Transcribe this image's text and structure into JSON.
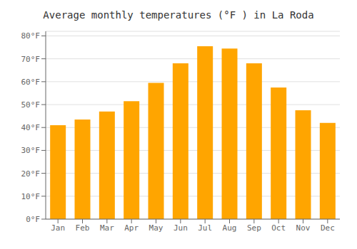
{
  "chart_data": {
    "type": "bar",
    "title": "Average monthly temperatures (°F ) in La Roda",
    "categories": [
      "Jan",
      "Feb",
      "Mar",
      "Apr",
      "May",
      "Jun",
      "Jul",
      "Aug",
      "Sep",
      "Oct",
      "Nov",
      "Dec"
    ],
    "values": [
      41,
      43.5,
      47,
      51.5,
      59.5,
      68,
      75.5,
      74.5,
      68,
      57.5,
      47.5,
      42
    ],
    "color": "#FFA500",
    "ylim": [
      0,
      82
    ],
    "yticks": [
      {
        "value": 0,
        "label": "0°F"
      },
      {
        "value": 10,
        "label": "10°F"
      },
      {
        "value": 20,
        "label": "20°F"
      },
      {
        "value": 30,
        "label": "30°F"
      },
      {
        "value": 40,
        "label": "40°F"
      },
      {
        "value": 50,
        "label": "50°F"
      },
      {
        "value": 60,
        "label": "60°F"
      },
      {
        "value": 70,
        "label": "70°F"
      },
      {
        "value": 80,
        "label": "80°F"
      }
    ],
    "grid": true
  }
}
